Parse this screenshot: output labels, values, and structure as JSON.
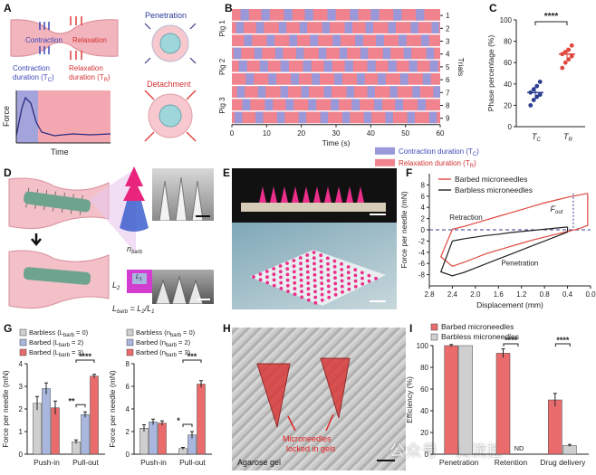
{
  "panels": {
    "A": {
      "label": "A",
      "texts": {
        "contraction": "Contraction",
        "relaxation": "Relaxation",
        "penetration": "Penetration",
        "detachment": "Detachment",
        "contraction_duration_1": "Contraction",
        "contraction_duration_2": "duration (T",
        "contraction_sub": "C",
        "relaxation_duration_1": "Relaxation",
        "relaxation_duration_2": "duration (T",
        "relaxation_sub": "R",
        "force": "Force",
        "time": "Time"
      }
    },
    "B": {
      "label": "B"
    },
    "C": {
      "label": "C"
    },
    "D": {
      "label": "D",
      "texts": {
        "n_barb": "n",
        "n_barb_sub": "barb",
        "L2": "L",
        "L2_sub": "2",
        "L1": "L",
        "L1_sub": "1",
        "lbarb_eq_1": "L",
        "lbarb_sub": "barb",
        "lbarb_eq_2": " = L",
        "lbarb_eq_sub2": "2",
        "lbarb_eq_3": "/L",
        "lbarb_eq_sub3": "1"
      }
    },
    "E": {
      "label": "E"
    },
    "F": {
      "label": "F"
    },
    "G": {
      "label": "G"
    },
    "H": {
      "label": "H",
      "texts": {
        "annotation_1": "Microneedles",
        "annotation_2": "locked in gels",
        "gel": "Agarose gel"
      }
    },
    "I": {
      "label": "I"
    }
  },
  "watermark": "公众号 · 微流控",
  "chart_data": [
    {
      "id": "B",
      "type": "timeline",
      "xlabel": "Time (s)",
      "ylabel": "Trials",
      "xlim": [
        0,
        60
      ],
      "xticks": [
        0,
        10,
        20,
        30,
        40,
        50,
        60
      ],
      "trial_labels": [
        "1",
        "2",
        "3",
        "4",
        "5",
        "6",
        "7",
        "8",
        "9"
      ],
      "groups": [
        {
          "name": "Pig 1",
          "rows": [
            0,
            1,
            2
          ]
        },
        {
          "name": "Pig 2",
          "rows": [
            3,
            4,
            5
          ]
        },
        {
          "name": "Pig 3",
          "rows": [
            6,
            7,
            8
          ]
        }
      ],
      "legend": [
        {
          "name": "Contraction duration (T",
          "sub": "C",
          "tail": ")",
          "color": "#9a98d8"
        },
        {
          "name": "Relaxation duration (T",
          "sub": "R",
          "tail": ")",
          "color": "#f0838e"
        }
      ],
      "colors": {
        "contraction": "#9a98d8",
        "relaxation": "#f0838e"
      },
      "rows": [
        {
          "starts": [
            2.5,
            8.5,
            15,
            21,
            27.5,
            34,
            40,
            46.5,
            53
          ],
          "dur": 2.4
        },
        {
          "starts": [
            1.2,
            7,
            13.5,
            19.5,
            26,
            32.5,
            38.5,
            45,
            51.5,
            57.5
          ],
          "dur": 2.2
        },
        {
          "starts": [
            3.5,
            10,
            16.5,
            22.5,
            29,
            35.5,
            41.5,
            48,
            54.5
          ],
          "dur": 2.3
        },
        {
          "starts": [
            0.5,
            6.5,
            12.5,
            18.5,
            25,
            31,
            37,
            43.5,
            49.5,
            56
          ],
          "dur": 2.2
        },
        {
          "starts": [
            2,
            8,
            14,
            20.5,
            26.5,
            32.5,
            39,
            45,
            51,
            57
          ],
          "dur": 2.4
        },
        {
          "starts": [
            4,
            10.5,
            17,
            23,
            29.5,
            36,
            42,
            48.5,
            55
          ],
          "dur": 2.3
        },
        {
          "starts": [
            1.5,
            7.5,
            14,
            20,
            26.5,
            33,
            39,
            45.5,
            52,
            58
          ],
          "dur": 2.2
        },
        {
          "starts": [
            3,
            9.5,
            15.5,
            22,
            28.5,
            34.5,
            41,
            47,
            53.5
          ],
          "dur": 2.3
        },
        {
          "starts": [
            0.8,
            6.8,
            13,
            19.2,
            25.5,
            31.8,
            38,
            44.2,
            50.5,
            56.8
          ],
          "dur": 2.2
        }
      ]
    },
    {
      "id": "C",
      "type": "scatter",
      "ylabel": "Phase percentage (%)",
      "ylim": [
        0,
        100
      ],
      "yticks": [
        0,
        20,
        40,
        60,
        80,
        100
      ],
      "categories": [
        {
          "main": "T",
          "sub": "C"
        },
        {
          "main": "T",
          "sub": "R"
        }
      ],
      "significance": "****",
      "series": [
        {
          "color": "#2c3e8f",
          "mean": 32,
          "err": 6,
          "values": [
            20,
            25,
            28,
            30,
            32,
            35,
            38,
            42
          ]
        },
        {
          "color": "#e0473f",
          "mean": 68,
          "err": 6,
          "values": [
            55,
            60,
            63,
            66,
            68,
            70,
            72,
            76
          ]
        }
      ]
    },
    {
      "id": "F",
      "type": "line",
      "xlabel": "Displacement (mm)",
      "ylabel": "Force per needle (mN)",
      "xlim": [
        2.8,
        0.0
      ],
      "xticks": [
        2.8,
        2.4,
        2.0,
        1.6,
        1.2,
        0.8,
        0.4,
        0.0
      ],
      "ylim": [
        -10,
        10
      ],
      "yticks": [
        -8,
        -6,
        -4,
        -2,
        0,
        2,
        4,
        6,
        8
      ],
      "annotations": {
        "retraction": "Retraction",
        "penetration": "Penetration",
        "fout": "F",
        "fout_sub": "out"
      },
      "series": [
        {
          "name": "Barbed microneedles",
          "color": "#e0473f",
          "x": [
            0.05,
            0.2,
            0.4,
            0.6,
            0.8,
            1.0,
            1.2,
            1.4,
            1.6,
            1.8,
            2.0,
            2.2,
            2.4,
            2.6,
            2.4,
            2.2,
            2.0,
            1.8,
            1.6,
            1.4,
            1.2,
            1.0,
            0.8,
            0.6,
            0.4,
            0.2,
            0.05,
            0.05
          ],
          "y": [
            6.5,
            6.2,
            5.8,
            5.3,
            4.8,
            4.2,
            3.6,
            3.0,
            2.4,
            1.8,
            1.2,
            0.6,
            0.1,
            -4.8,
            -6.5,
            -5.8,
            -5.0,
            -4.2,
            -3.6,
            -3.0,
            -2.4,
            -1.8,
            -1.3,
            -0.8,
            -0.3,
            0.2,
            0.8,
            6.5
          ]
        },
        {
          "name": "Barbless microneedles",
          "color": "#222222",
          "x": [
            0.4,
            0.6,
            0.8,
            1.0,
            1.2,
            1.4,
            1.6,
            1.8,
            2.0,
            2.2,
            2.4,
            2.6,
            2.4,
            2.2,
            2.0,
            1.8,
            1.6,
            1.4,
            1.2,
            1.0,
            0.8,
            0.6,
            0.4,
            0.4
          ],
          "y": [
            0.5,
            0.3,
            0.1,
            -0.1,
            -0.3,
            -0.5,
            -0.8,
            -1.0,
            -1.3,
            -1.6,
            -2.0,
            -7.5,
            -8.2,
            -7.6,
            -6.8,
            -6.0,
            -5.2,
            -4.4,
            -3.6,
            -2.8,
            -2.0,
            -1.2,
            -0.4,
            0.5
          ]
        }
      ]
    },
    {
      "id": "G1",
      "type": "bar",
      "ylabel": "Force per needle (mN)",
      "ylim": [
        0,
        4
      ],
      "yticks": [
        0,
        1,
        2,
        3,
        4
      ],
      "categories": [
        "Push-in",
        "Pull-out"
      ],
      "legend": [
        {
          "name": "Barbless (L",
          "sub": "barb",
          "tail": " = 0)"
        },
        {
          "name": "Barbed (L",
          "sub": "barb",
          "tail": " = 2)"
        },
        {
          "name": "Barbed (L",
          "sub": "barb",
          "tail": " = 3)"
        }
      ],
      "series": [
        {
          "color": "#cfcfcf",
          "values": [
            2.25,
            0.55
          ],
          "err": [
            0.3,
            0.08
          ]
        },
        {
          "color": "#a9b6de",
          "values": [
            2.9,
            1.75
          ],
          "err": [
            0.25,
            0.12
          ]
        },
        {
          "color": "#ea6b6b",
          "values": [
            2.05,
            3.45
          ],
          "err": [
            0.3,
            0.08
          ]
        }
      ],
      "significance": [
        {
          "from": 0,
          "to": 2,
          "label": "****"
        },
        {
          "from": 0,
          "to": 1,
          "label": "**"
        }
      ]
    },
    {
      "id": "G2",
      "type": "bar",
      "ylabel": "Force per needle (mN)",
      "ylim": [
        0,
        8
      ],
      "yticks": [
        0,
        2,
        4,
        6,
        8
      ],
      "categories": [
        "Push-in",
        "Pull-out"
      ],
      "legend": [
        {
          "name": "Barbless (n",
          "sub": "barb",
          "tail": " = 0)"
        },
        {
          "name": "Barbed (n",
          "sub": "barb",
          "tail": " = 2)"
        },
        {
          "name": "Barbed (n",
          "sub": "barb",
          "tail": " = 3)"
        }
      ],
      "series": [
        {
          "color": "#cfcfcf",
          "values": [
            2.3,
            0.5
          ],
          "err": [
            0.3,
            0.1
          ]
        },
        {
          "color": "#a9b6de",
          "values": [
            2.85,
            1.7
          ],
          "err": [
            0.25,
            0.3
          ]
        },
        {
          "color": "#ea6b6b",
          "values": [
            2.75,
            6.2
          ],
          "err": [
            0.2,
            0.3
          ]
        }
      ],
      "significance": [
        {
          "from": 0,
          "to": 2,
          "label": "***"
        },
        {
          "from": 0,
          "to": 1,
          "label": "*"
        }
      ]
    },
    {
      "id": "I",
      "type": "bar",
      "ylabel": "Efficiency (%)",
      "ylim": [
        0,
        100
      ],
      "yticks": [
        0,
        20,
        40,
        60,
        80,
        100
      ],
      "categories": [
        "Penetration",
        "Retention",
        "Drug delivery"
      ],
      "legend": [
        {
          "name": "Barbed microneedles",
          "color": "#ea6b6b"
        },
        {
          "name": "Barbless microneedles",
          "color": "#cfcfcf"
        }
      ],
      "series": [
        {
          "color": "#ea6b6b",
          "values": [
            100,
            93,
            50
          ],
          "err": [
            1,
            4,
            6
          ]
        },
        {
          "color": "#cfcfcf",
          "values": [
            100,
            0,
            8
          ],
          "err": [
            0,
            0,
            1
          ]
        }
      ],
      "notes": [
        "ND"
      ],
      "significance": [
        {
          "cat": 1,
          "label": "****"
        },
        {
          "cat": 2,
          "label": "****"
        }
      ]
    }
  ]
}
